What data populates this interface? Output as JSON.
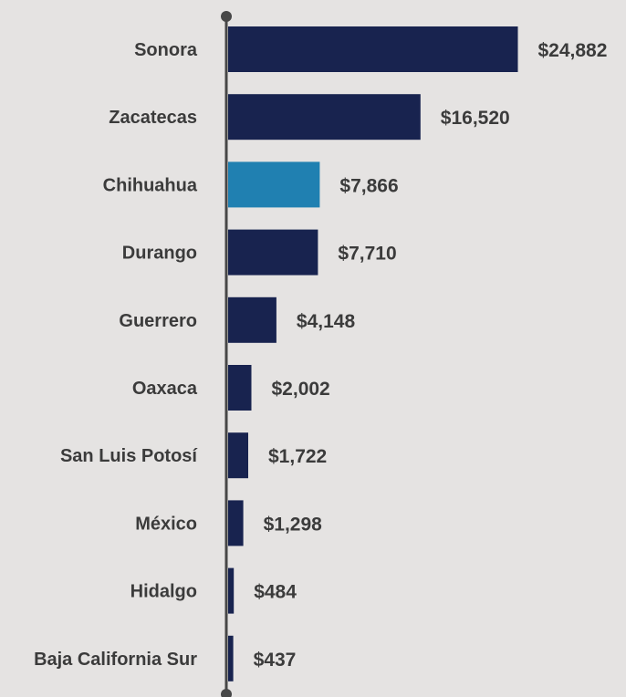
{
  "chart_data": {
    "type": "bar",
    "orientation": "horizontal",
    "title": "",
    "xlabel": "",
    "ylabel": "",
    "categories": [
      "Sonora",
      "Zacatecas",
      "Chihuahua",
      "Durango",
      "Guerrero",
      "Oaxaca",
      "San Luis Potosí",
      "México",
      "Hidalgo",
      "Baja California Sur"
    ],
    "values": [
      24882,
      16520,
      7866,
      7710,
      4148,
      2002,
      1722,
      1298,
      484,
      437
    ],
    "value_labels": [
      "$24,882",
      "$16,520",
      "$7,866",
      "$7,710",
      "$4,148",
      "$2,002",
      "$1,722",
      "$1,298",
      "$484",
      "$437"
    ],
    "highlight_category": "Chihuahua",
    "xlim": [
      0,
      25000
    ],
    "grid": false,
    "legend": "none"
  },
  "colors": {
    "background": "#e5e3e2",
    "bar": "#18234f",
    "highlight": "#2080b1",
    "axis": "#474747",
    "text": "#3b3b3b"
  }
}
